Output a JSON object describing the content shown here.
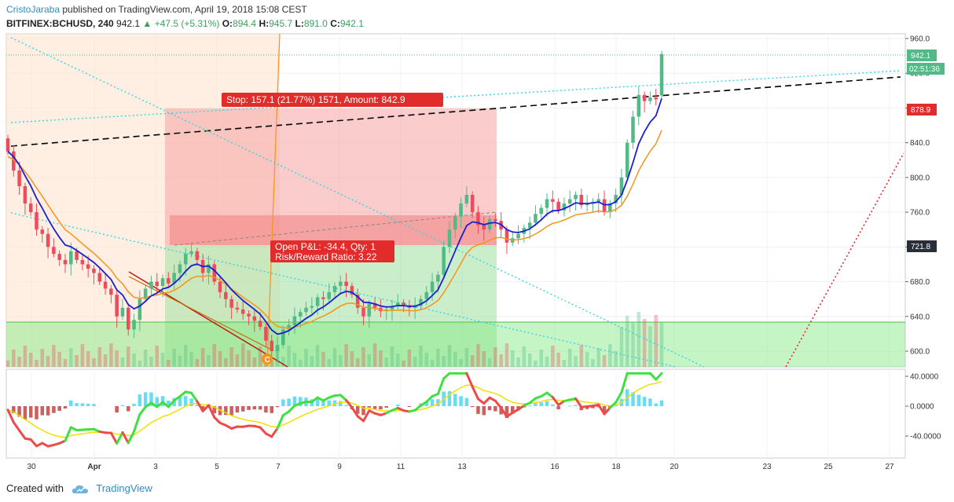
{
  "header": {
    "author": "CristoJaraba",
    "published_text": "published on TradingView.com, April 19, 2018 15:08 CEST",
    "symbol": "BITFINEX:BCHUSD, 240",
    "last": "942.1",
    "change_arrow": "▲",
    "change": "+47.5 (+5.31%)",
    "ohlc": {
      "o_label": "O:",
      "o": "894.4",
      "h_label": "H:",
      "h": "945.7",
      "l_label": "L:",
      "l": "891.0",
      "c_label": "C:",
      "c": "942.1"
    }
  },
  "footer": {
    "created_with": "Created with",
    "brand": "TradingView"
  },
  "price_axis": {
    "ticks": [
      "960.0",
      "920.0",
      "880.0",
      "840.0",
      "800.0",
      "760.0",
      "720.0",
      "680.0",
      "640.0",
      "600.0"
    ],
    "badges": {
      "last_price": "942.1",
      "countdown": "02:51:36",
      "stop_price": "878.9",
      "entry_price": "721.8"
    }
  },
  "osc_axis": {
    "ticks": [
      "40.0000",
      "0.0000",
      "-40.0000"
    ]
  },
  "time_axis": {
    "ticks": [
      "30",
      "Apr",
      "3",
      "5",
      "7",
      "9",
      "11",
      "13",
      "16",
      "18",
      "20",
      "23",
      "25",
      "27"
    ]
  },
  "annotations": {
    "stop_label": "Stop: 157.1 (21.77%) 1571, Amount: 842.9",
    "pnl_label": "Open P&L: -34.4, Qty: 1",
    "rr_label": "Risk/Reward Ratio: 3.22",
    "marker_letter": "C"
  },
  "colors": {
    "up": "#53b987",
    "down": "#eb4d5c",
    "ema_fast": "#1b1ed2",
    "ema_slow": "#f7931a",
    "stop_fill": "#f8a3a3",
    "target_fill": "#9fe09f",
    "trendline": "#000000",
    "cyan_line": "#35d4e6",
    "badge_red": "#e22b2b",
    "badge_green": "#53b987"
  },
  "chart_data": {
    "type": "candlestick",
    "timeframe": "240",
    "x_ticks": [
      "30",
      "Apr",
      "3",
      "5",
      "7",
      "9",
      "11",
      "13",
      "16",
      "18",
      "20",
      "23",
      "25",
      "27"
    ],
    "ylim": [
      580,
      970
    ],
    "last_price": 942.1,
    "ohlc_last": {
      "open": 894.4,
      "high": 945.7,
      "low": 891.0,
      "close": 942.1
    },
    "position": {
      "entry": 721.8,
      "stop": 878.9,
      "target": 600,
      "stop_points": 157.1,
      "stop_pct": 21.77,
      "open_pnl": -34.4,
      "qty": 1,
      "risk_reward": 3.22
    },
    "close_series": [
      830,
      808,
      790,
      770,
      760,
      740,
      735,
      720,
      712,
      705,
      700,
      715,
      705,
      700,
      695,
      690,
      680,
      672,
      665,
      640,
      650,
      625,
      636,
      660,
      672,
      680,
      675,
      684,
      678,
      690,
      700,
      712,
      715,
      705,
      690,
      700,
      680,
      668,
      660,
      650,
      648,
      643,
      640,
      635,
      628,
      612,
      600,
      607,
      625,
      630,
      640,
      645,
      650,
      652,
      662,
      660,
      668,
      675,
      680,
      675,
      665,
      650,
      640,
      655,
      650,
      646,
      648,
      652,
      656,
      652,
      650,
      652,
      660,
      668,
      680,
      688,
      720,
      740,
      755,
      770,
      780,
      760,
      745,
      740,
      752,
      750,
      740,
      725,
      730,
      735,
      742,
      748,
      758,
      765,
      775,
      772,
      762,
      770,
      775,
      780,
      768,
      770,
      772,
      775,
      760,
      770,
      780,
      800,
      840,
      870,
      895,
      888,
      892,
      890,
      942
    ],
    "oscillator": {
      "ylim": [
        -60,
        40
      ],
      "ticks": [
        40,
        0,
        -40
      ]
    }
  }
}
